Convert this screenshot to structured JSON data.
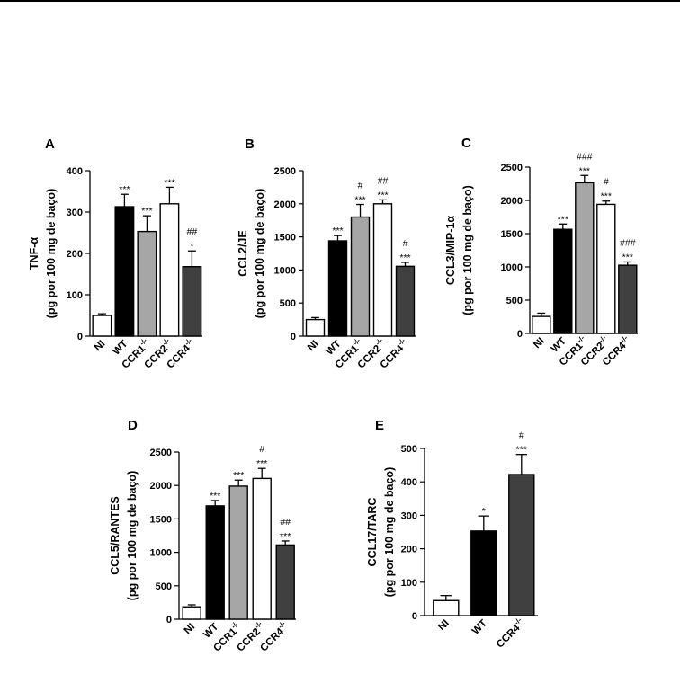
{
  "colors": {
    "NI": "#ffffff",
    "WT": "#000000",
    "CCR1": "#a6a6a6",
    "CCR2": "#ffffff",
    "CCR4": "#404040",
    "axis": "#000000"
  },
  "chart_data": [
    {
      "panel": "A",
      "type": "bar",
      "ylabel": "TNF-α",
      "ylabel2": "(pg por 100 mg de baço)",
      "ylim": [
        0,
        400
      ],
      "yticks": [
        0,
        100,
        200,
        300,
        400
      ],
      "categories": [
        {
          "base": "NI",
          "sup": ""
        },
        {
          "base": "WT",
          "sup": ""
        },
        {
          "base": "CCR1",
          "sup": "-/-"
        },
        {
          "base": "CCR2",
          "sup": "-/-"
        },
        {
          "base": "CCR4",
          "sup": "-/-"
        }
      ],
      "values": [
        50,
        313,
        253,
        320,
        168
      ],
      "errors": [
        4,
        30,
        38,
        40,
        38
      ],
      "sig": [
        [],
        [
          "***"
        ],
        [
          "***"
        ],
        [
          "***"
        ],
        [
          "*",
          "##"
        ]
      ],
      "color_keys": [
        "NI",
        "WT",
        "CCR1",
        "CCR2",
        "CCR4"
      ]
    },
    {
      "panel": "B",
      "type": "bar",
      "ylabel": "CCL2/JE",
      "ylabel2": "(pg por 100 mg de baço)",
      "ylim": [
        0,
        2500
      ],
      "yticks": [
        0,
        500,
        1000,
        1500,
        2000,
        2500
      ],
      "categories": [
        {
          "base": "NI",
          "sup": ""
        },
        {
          "base": "WT",
          "sup": ""
        },
        {
          "base": "CCR1",
          "sup": "-/-"
        },
        {
          "base": "CCR2",
          "sup": "-/-"
        },
        {
          "base": "CCR4",
          "sup": "-/-"
        }
      ],
      "values": [
        250,
        1440,
        1800,
        2000,
        1055
      ],
      "errors": [
        30,
        80,
        190,
        60,
        60
      ],
      "sig": [
        [],
        [
          "***"
        ],
        [
          "***",
          "#"
        ],
        [
          "***",
          "##"
        ],
        [
          "***",
          "#"
        ]
      ],
      "color_keys": [
        "NI",
        "WT",
        "CCR1",
        "CCR2",
        "CCR4"
      ]
    },
    {
      "panel": "C",
      "type": "bar",
      "ylabel": "CCL3/MIP-1α",
      "ylabel2": "(pg por 100 mg de baço)",
      "ylim": [
        0,
        2500
      ],
      "yticks": [
        0,
        500,
        1000,
        1500,
        2000,
        2500
      ],
      "categories": [
        {
          "base": "NI",
          "sup": ""
        },
        {
          "base": "WT",
          "sup": ""
        },
        {
          "base": "CCR1",
          "sup": "-/-"
        },
        {
          "base": "CCR2",
          "sup": "-/-"
        },
        {
          "base": "CCR4",
          "sup": "-/-"
        }
      ],
      "values": [
        255,
        1565,
        2265,
        1940,
        1025
      ],
      "errors": [
        50,
        80,
        110,
        50,
        50
      ],
      "sig": [
        [],
        [
          "***"
        ],
        [
          "***",
          "###"
        ],
        [
          "***",
          "#"
        ],
        [
          "***",
          "###"
        ]
      ],
      "color_keys": [
        "NI",
        "WT",
        "CCR1",
        "CCR2",
        "CCR4"
      ]
    },
    {
      "panel": "D",
      "type": "bar",
      "ylabel": "CCL5/RANTES",
      "ylabel2": "(pg por 100 mg de baço)",
      "ylim": [
        0,
        2500
      ],
      "yticks": [
        0,
        500,
        1000,
        1500,
        2000,
        2500
      ],
      "categories": [
        {
          "base": "NI",
          "sup": ""
        },
        {
          "base": "WT",
          "sup": ""
        },
        {
          "base": "CCR1",
          "sup": "-/-"
        },
        {
          "base": "CCR2",
          "sup": "-/-"
        },
        {
          "base": "CCR4",
          "sup": "-/-"
        }
      ],
      "values": [
        185,
        1695,
        1990,
        2105,
        1110
      ],
      "errors": [
        30,
        80,
        90,
        150,
        60
      ],
      "sig": [
        [],
        [
          "***"
        ],
        [
          "***"
        ],
        [
          "***",
          "#"
        ],
        [
          "***",
          "##"
        ]
      ],
      "color_keys": [
        "NI",
        "WT",
        "CCR1",
        "CCR2",
        "CCR4"
      ]
    },
    {
      "panel": "E",
      "type": "bar",
      "ylabel": "CCL17/TARC",
      "ylabel2": "(pg por 100 mg de baço)",
      "ylim": [
        0,
        500
      ],
      "yticks": [
        0,
        100,
        200,
        300,
        400,
        500
      ],
      "categories": [
        {
          "base": "NI",
          "sup": ""
        },
        {
          "base": "WT",
          "sup": ""
        },
        {
          "base": "CCR4",
          "sup": "-/-"
        }
      ],
      "values": [
        45,
        253,
        422
      ],
      "errors": [
        15,
        45,
        60
      ],
      "sig": [
        [],
        [
          "*"
        ],
        [
          "***",
          "#"
        ]
      ],
      "color_keys": [
        "NI",
        "WT",
        "CCR4"
      ]
    }
  ]
}
